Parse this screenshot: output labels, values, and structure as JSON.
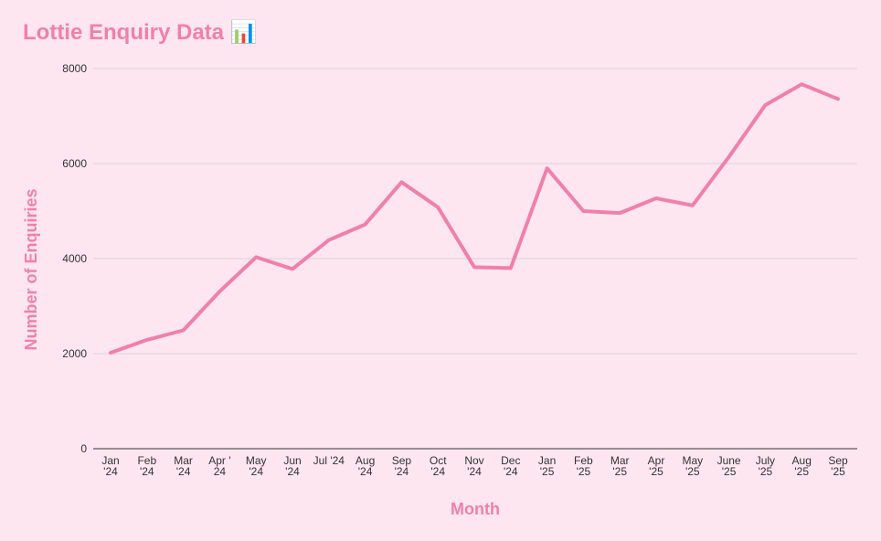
{
  "chart_data": {
    "type": "line",
    "title": "Lottie Enquiry Data 📊",
    "xlabel": "Month",
    "ylabel": "Number of Enquiries",
    "categories": [
      "Jan '24",
      "Feb '24",
      "Mar '24",
      "Apr '24",
      "May '24",
      "Jun '24",
      "Jul '24",
      "Aug '24",
      "Sep '24",
      "Oct '24",
      "Nov '24",
      "Dec '24",
      "Jan '25",
      "Feb '25",
      "Mar '25",
      "Apr '25",
      "May '25",
      "June '25",
      "July '25",
      "Aug '25",
      "Sep '25"
    ],
    "tick_labels": [
      [
        "Jan",
        "'24"
      ],
      [
        "Feb",
        "'24"
      ],
      [
        "Mar",
        "'24"
      ],
      [
        "Apr '",
        "24"
      ],
      [
        "May",
        "'24"
      ],
      [
        "Jun",
        "'24"
      ],
      [
        "Jul '24"
      ],
      [
        "Aug",
        "'24"
      ],
      [
        "Sep",
        "'24"
      ],
      [
        "Oct",
        "'24"
      ],
      [
        "Nov",
        "'24"
      ],
      [
        "Dec",
        "'24"
      ],
      [
        "Jan",
        "'25"
      ],
      [
        "Feb",
        "'25"
      ],
      [
        "Mar",
        "'25"
      ],
      [
        "Apr",
        "'25"
      ],
      [
        "May",
        "'25"
      ],
      [
        "June",
        "'25"
      ],
      [
        "July",
        "'25"
      ],
      [
        "Aug",
        "'25"
      ],
      [
        "Sep",
        "'25"
      ]
    ],
    "series": [
      {
        "values": [
          2020,
          2290,
          2490,
          3310,
          4030,
          3780,
          4390,
          4720,
          5610,
          5080,
          3820,
          3800,
          5900,
          5000,
          4960,
          5270,
          5120,
          6140,
          7230,
          7670,
          7360
        ],
        "color": "#f180a8"
      }
    ],
    "ylim": [
      0,
      8000
    ],
    "yticks": [
      0,
      2000,
      4000,
      6000,
      8000
    ],
    "grid": true,
    "legend": "none"
  },
  "colors": {
    "background": "#fde6ef",
    "accent": "#f180a8",
    "gridline": "#d9d2d6",
    "text": "#333333"
  }
}
